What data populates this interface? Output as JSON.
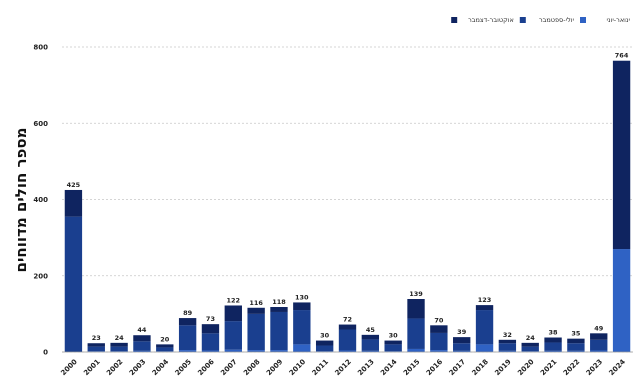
{
  "chart_data": {
    "type": "bar",
    "stacked": true,
    "categories": [
      "2000",
      "2001",
      "2002",
      "2003",
      "2004",
      "2005",
      "2006",
      "2007",
      "2008",
      "2009",
      "2010",
      "2011",
      "2012",
      "2013",
      "2014",
      "2015",
      "2016",
      "2017",
      "2018",
      "2019",
      "2020",
      "2021",
      "2022",
      "2023",
      "2024"
    ],
    "totals": [
      425,
      23,
      24,
      44,
      20,
      89,
      73,
      122,
      116,
      118,
      130,
      30,
      72,
      45,
      30,
      139,
      70,
      39,
      123,
      32,
      24,
      38,
      35,
      49,
      764
    ],
    "total_labels": [
      "425",
      "23",
      "24",
      "44",
      "20",
      "89",
      "73",
      "122",
      "116",
      "118",
      "130",
      "30",
      "72",
      "45",
      "30",
      "139",
      "70",
      "39",
      "123",
      "32",
      "24",
      "38",
      "35",
      "49",
      "764"
    ],
    "series": [
      {
        "name": "ינואר-יוני",
        "color": "#2f62c4",
        "values": [
          0,
          2,
          2,
          3,
          2,
          5,
          4,
          6,
          5,
          5,
          20,
          2,
          4,
          3,
          2,
          8,
          5,
          3,
          20,
          3,
          2,
          3,
          3,
          4,
          270
        ]
      },
      {
        "name": "יולי-ספטמבר",
        "color": "#1a3f8f",
        "values": [
          355,
          12,
          12,
          25,
          10,
          65,
          45,
          75,
          95,
          100,
          90,
          15,
          55,
          30,
          18,
          80,
          45,
          20,
          90,
          20,
          12,
          22,
          20,
          28,
          0
        ]
      },
      {
        "name": "אוקטובר-דצמבר",
        "color": "#0f2460",
        "values": [
          70,
          9,
          10,
          16,
          8,
          19,
          24,
          41,
          16,
          13,
          20,
          13,
          13,
          12,
          10,
          51,
          20,
          16,
          13,
          9,
          10,
          13,
          12,
          17,
          494
        ]
      }
    ],
    "ylabel": "מספר חולים מדווחים",
    "xlabel": "",
    "ylim": [
      0,
      800
    ],
    "yticks": [
      "0",
      "200",
      "400",
      "600",
      "800"
    ],
    "ytick_values": [
      0,
      200,
      400,
      600,
      800
    ],
    "grid": true,
    "legend_position": "top-right"
  }
}
